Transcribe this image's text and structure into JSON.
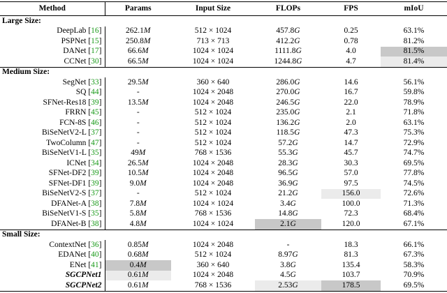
{
  "headers": [
    "Method",
    "Params",
    "Input Size",
    "FLOPs",
    "FPS",
    "mIoU"
  ],
  "groups": [
    {
      "label": "Large Size:",
      "rows": [
        {
          "name": "DeepLab",
          "ref": "16",
          "params": "262.1",
          "params_unit": "M",
          "input": "512 × 1024",
          "flops": "457.8",
          "flops_unit": "G",
          "fps": "0.25",
          "miou": "63.1%"
        },
        {
          "name": "PSPNet",
          "ref": "15",
          "params": "250.8",
          "params_unit": "M",
          "input": "713 × 713",
          "flops": "412.2",
          "flops_unit": "G",
          "fps": "0.78",
          "miou": "81.2%"
        },
        {
          "name": "DANet",
          "ref": "17",
          "params": "66.6",
          "params_unit": "M",
          "input": "1024 × 1024",
          "flops": "1111.8",
          "flops_unit": "G",
          "fps": "4.0",
          "miou": "81.5%",
          "hl_miou": "dark"
        },
        {
          "name": "CCNet",
          "ref": "30",
          "params": "66.5",
          "params_unit": "M",
          "input": "1024 × 1024",
          "flops": "1244.8",
          "flops_unit": "G",
          "fps": "4.7",
          "miou": "81.4%",
          "hl_miou": "light"
        }
      ]
    },
    {
      "label": "Medium Size:",
      "rows": [
        {
          "name": "SegNet",
          "ref": "33",
          "params": "29.5",
          "params_unit": "M",
          "input": "360 × 640",
          "flops": "286.0",
          "flops_unit": "G",
          "fps": "14.6",
          "miou": "56.1%"
        },
        {
          "name": "SQ",
          "ref": "44",
          "params": "-",
          "params_unit": "",
          "input": "1024 × 2048",
          "flops": "270.0",
          "flops_unit": "G",
          "fps": "16.7",
          "miou": "59.8%"
        },
        {
          "name": "SFNet-Res18",
          "ref": "39",
          "params": "13.5",
          "params_unit": "M",
          "input": "1024 × 2048",
          "flops": "246.5",
          "flops_unit": "G",
          "fps": "22.0",
          "miou": "78.9%"
        },
        {
          "name": "FRRN",
          "ref": "45",
          "params": "-",
          "params_unit": "",
          "input": "512 × 1024",
          "flops": "235.0",
          "flops_unit": "G",
          "fps": "2.1",
          "miou": "71.8%"
        },
        {
          "name": "FCN-8S",
          "ref": "46",
          "params": "-",
          "params_unit": "",
          "input": "512 × 1024",
          "flops": "136.2",
          "flops_unit": "G",
          "fps": "2.0",
          "miou": "63.1%"
        },
        {
          "name": "BiSeNetV2-L",
          "ref": "37",
          "params": "-",
          "params_unit": "",
          "input": "512 × 1024",
          "flops": "118.5",
          "flops_unit": "G",
          "fps": "47.3",
          "miou": "75.3%"
        },
        {
          "name": "TwoColumn",
          "ref": "47",
          "params": "-",
          "params_unit": "",
          "input": "512 × 1024",
          "flops": "57.2",
          "flops_unit": "G",
          "fps": "14.7",
          "miou": "72.9%"
        },
        {
          "name": "BiSeNetV1-L",
          "ref": "35",
          "params": "49",
          "params_unit": "M",
          "input": "768 × 1536",
          "flops": "55.3",
          "flops_unit": "G",
          "fps": "45.7",
          "miou": "74.7%"
        },
        {
          "name": "ICNet",
          "ref": "34",
          "params": "26.5",
          "params_unit": "M",
          "input": "1024 × 2048",
          "flops": "28.3",
          "flops_unit": "G",
          "fps": "30.3",
          "miou": "69.5%"
        },
        {
          "name": "SFNet-DF2",
          "ref": "39",
          "params": "10.5",
          "params_unit": "M",
          "input": "1024 × 2048",
          "flops": "96.5",
          "flops_unit": "G",
          "fps": "57.0",
          "miou": "77.8%"
        },
        {
          "name": "SFNet-DF1",
          "ref": "39",
          "params": "9.0",
          "params_unit": "M",
          "input": "1024 × 2048",
          "flops": "36.9",
          "flops_unit": "G",
          "fps": "97.5",
          "miou": "74.5%"
        },
        {
          "name": "BiSeNetV2-S",
          "ref": "37",
          "params": "-",
          "params_unit": "",
          "input": "512 × 1024",
          "flops": "21.2",
          "flops_unit": "G",
          "fps": "156.0",
          "miou": "72.6%",
          "hl_fps": "light"
        },
        {
          "name": "DFANet-A",
          "ref": "38",
          "params": "7.8",
          "params_unit": "M",
          "input": "1024 × 1024",
          "flops": "3.4",
          "flops_unit": "G",
          "fps": "100.0",
          "miou": "71.3%"
        },
        {
          "name": "BiSeNetV1-S",
          "ref": "35",
          "params": "5.8",
          "params_unit": "M",
          "input": "768 × 1536",
          "flops": "14.8",
          "flops_unit": "G",
          "fps": "72.3",
          "miou": "68.4%"
        },
        {
          "name": "DFANet-B",
          "ref": "38",
          "params": "4.8",
          "params_unit": "M",
          "input": "1024 × 1024",
          "flops": "2.1",
          "flops_unit": "G",
          "fps": "120.0",
          "miou": "67.1%",
          "hl_flops": "dark"
        }
      ]
    },
    {
      "label": "Small Size:",
      "rows": [
        {
          "name": "ContextNet",
          "ref": "36",
          "params": "0.85",
          "params_unit": "M",
          "input": "1024 × 2048",
          "flops": "-",
          "flops_unit": "",
          "fps": "18.3",
          "miou": "66.1%"
        },
        {
          "name": "EDANet",
          "ref": "40",
          "params": "0.68",
          "params_unit": "M",
          "input": "512 × 1024",
          "flops": "8.97",
          "flops_unit": "G",
          "fps": "81.3",
          "miou": "67.3%"
        },
        {
          "name": "ENet",
          "ref": "41",
          "params": "0.4",
          "params_unit": "M",
          "input": "360 × 640",
          "flops": "3.8",
          "flops_unit": "G",
          "fps": "135.4",
          "miou": "58.3%",
          "hl_params": "dark"
        },
        {
          "name": "SGCPNet1",
          "ref": "",
          "ours": true,
          "params": "0.61",
          "params_unit": "M",
          "input": "1024 × 2048",
          "flops": "4.5",
          "flops_unit": "G",
          "fps": "103.7",
          "miou": "70.9%",
          "hl_params": "light"
        },
        {
          "name": "SGCPNet2",
          "ref": "",
          "ours": true,
          "params": "0.61",
          "params_unit": "M",
          "input": "768 × 1536",
          "flops": "2.53",
          "flops_unit": "G",
          "fps": "178.5",
          "miou": "69.5%",
          "hl_flops": "light",
          "hl_fps": "dark"
        }
      ]
    }
  ],
  "colors": {
    "ref_link": "#1a9a1a",
    "highlight_best": "#c8c8c8",
    "highlight_second": "#ebebeb"
  }
}
